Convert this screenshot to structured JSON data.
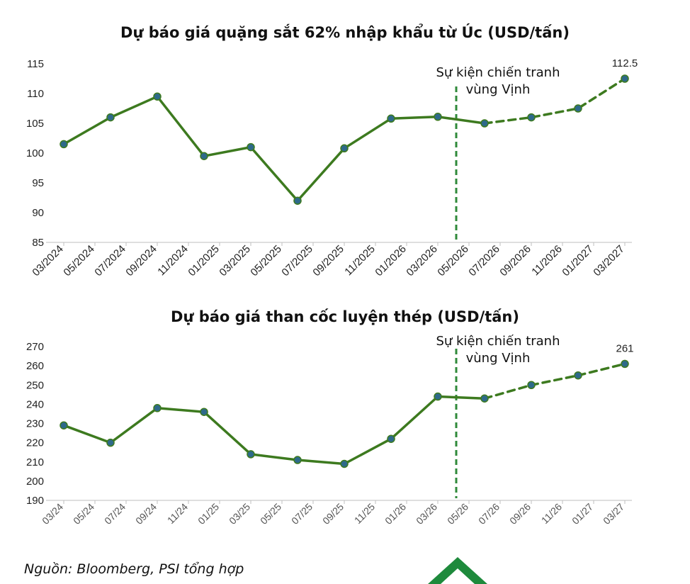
{
  "chart_data": [
    {
      "type": "line",
      "title": "Dự báo giá quặng sắt 62% nhập khẩu từ Úc (USD/tấn)",
      "xlabel": "",
      "ylabel": "",
      "ylim": [
        85,
        115
      ],
      "yticks": [
        "85",
        "90",
        "95",
        "100",
        "105",
        "110",
        "115"
      ],
      "tick_labels": [
        "03/2024",
        "05/2024",
        "07/2024",
        "09/2024",
        "11/2024",
        "01/2025",
        "03/2025",
        "05/2025",
        "07/2025",
        "09/2025",
        "11/2025",
        "01/2026",
        "03/2026",
        "05/2026",
        "07/2026",
        "09/2026",
        "11/2026",
        "01/2027",
        "03/2027"
      ],
      "series": [
        {
          "style": "solid",
          "x": [
            "03/2024",
            "06/2024",
            "09/2024",
            "12/2024",
            "03/2025",
            "06/2025",
            "09/2025",
            "12/2025",
            "03/2026",
            "06/2026"
          ],
          "values": [
            101.5,
            106.0,
            109.5,
            99.5,
            101.0,
            92.0,
            100.8,
            105.8,
            106.1,
            105.0
          ]
        },
        {
          "style": "dashed",
          "x": [
            "06/2026",
            "09/2026",
            "12/2026",
            "03/2027"
          ],
          "values": [
            105.0,
            106.0,
            107.5,
            112.5
          ]
        }
      ],
      "data_labels": [
        {
          "x": "03/2027",
          "text": "112.5"
        }
      ],
      "event_line": {
        "x": "04/2026",
        "label_line1": "Sự kiện chiến tranh",
        "label_line2": "vùng Vịnh"
      },
      "grid": false
    },
    {
      "type": "line",
      "title": "Dự báo giá than cốc luyện thép (USD/tấn)",
      "xlabel": "",
      "ylabel": "",
      "ylim": [
        190,
        270
      ],
      "yticks": [
        "190",
        "200",
        "210",
        "220",
        "230",
        "240",
        "250",
        "260",
        "270"
      ],
      "tick_labels": [
        "03/24",
        "05/24",
        "07/24",
        "09/24",
        "11/24",
        "01/25",
        "03/25",
        "05/25",
        "07/25",
        "09/25",
        "11/25",
        "01/26",
        "03/26",
        "05/26",
        "07/26",
        "09/26",
        "11/26",
        "01/27",
        "03/27"
      ],
      "series": [
        {
          "style": "solid",
          "x": [
            "03/24",
            "06/24",
            "09/24",
            "12/24",
            "03/25",
            "06/25",
            "09/25",
            "12/25",
            "03/26",
            "06/26"
          ],
          "values": [
            229,
            220,
            238,
            236,
            214,
            211,
            209,
            222,
            244,
            243
          ]
        },
        {
          "style": "dashed",
          "x": [
            "06/26",
            "09/26",
            "12/26",
            "03/27"
          ],
          "values": [
            243,
            250,
            255,
            261
          ]
        }
      ],
      "data_labels": [
        {
          "x": "03/27",
          "text": "261"
        }
      ],
      "event_line": {
        "x": "04/26",
        "label_line1": "Sự kiện chiến tranh",
        "label_line2": "vùng Vịnh"
      },
      "grid": false
    }
  ],
  "colors": {
    "line": "#3d7a1f",
    "marker": "#2e6a8a",
    "event_line": "#2f8a3a",
    "axis": "#bfbfbf",
    "logo": "#1e8a3c"
  },
  "source": "Nguồn: Bloomberg, PSI tổng hợp",
  "logo_icon": "psi-logo-chevron"
}
